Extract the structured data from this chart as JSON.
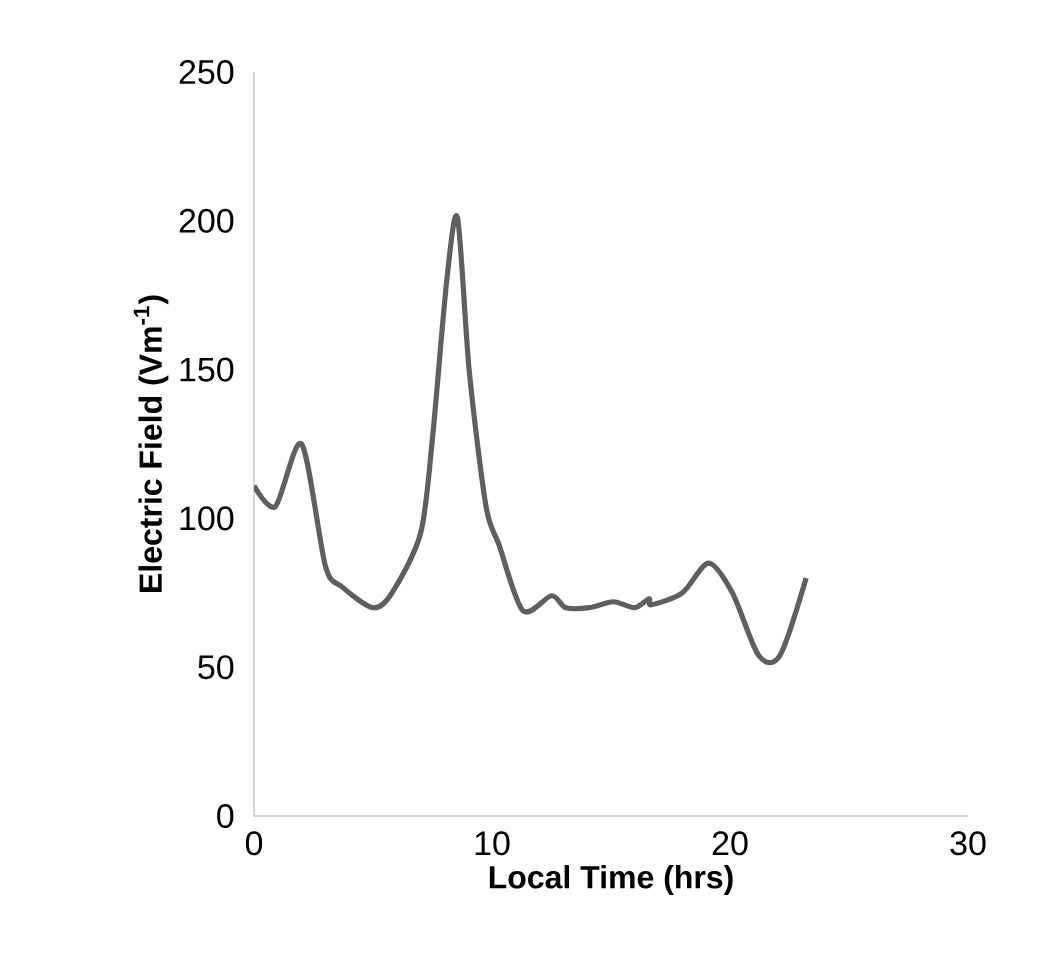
{
  "chart_data": {
    "type": "line",
    "xlabel": "Local Time (hrs)",
    "ylabel": "Electric Field (Vm$^{-1}$)",
    "x": [
      0,
      0.9,
      2.0,
      3.0,
      3.7,
      5.0,
      5.8,
      7.0,
      7.5,
      8.1,
      8.55,
      9.05,
      9.75,
      10.3,
      11.3,
      12.5,
      13.1,
      14.1,
      15.1,
      16.0,
      16.6,
      16.7,
      18.0,
      19.1,
      20.1,
      21.2,
      22.1,
      23.2
    ],
    "values": [
      111,
      104,
      125,
      84,
      77,
      70,
      75,
      95,
      127,
      180,
      201,
      149,
      104,
      91,
      69,
      74,
      70,
      70,
      72,
      70,
      73,
      71,
      75,
      85,
      75,
      54,
      54,
      80
    ],
    "color": "#5f5f5f",
    "xlim": [
      0,
      30
    ],
    "xticks": [
      0,
      10,
      20,
      30
    ],
    "ylim": [
      0,
      250
    ],
    "yticks": [
      0,
      50,
      100,
      150,
      200,
      250
    ],
    "grid": false
  }
}
